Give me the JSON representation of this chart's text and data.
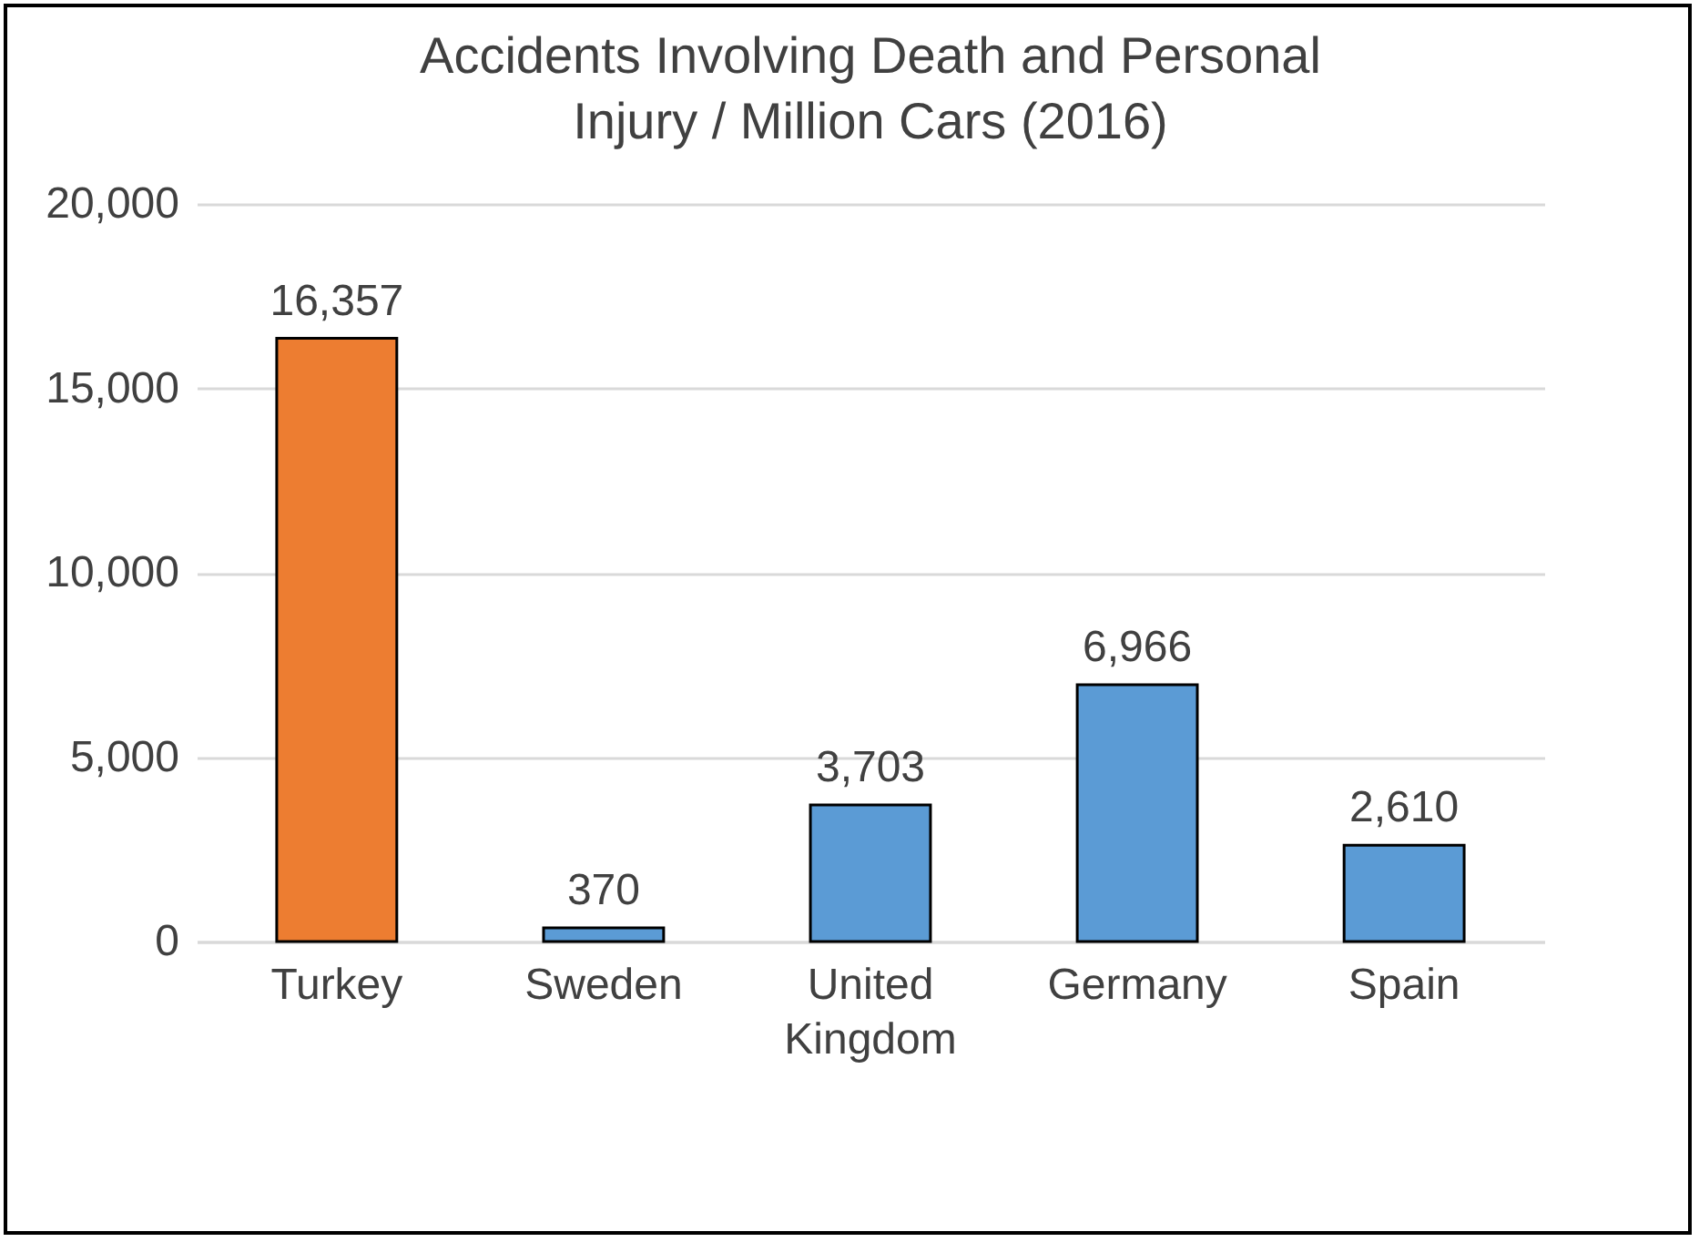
{
  "chart_data": {
    "type": "bar",
    "title": "Accidents Involving Death and Personal Injury / Million Cars (2016)",
    "categories": [
      "Turkey",
      "Sweden",
      "United Kingdom",
      "Germany",
      "Spain"
    ],
    "values": [
      16357,
      370,
      3703,
      6966,
      2610
    ],
    "value_labels": [
      "16,357",
      "370",
      "3,703",
      "6,966",
      "2,610"
    ],
    "colors": [
      "#ed7d31",
      "#5b9bd5",
      "#5b9bd5",
      "#5b9bd5",
      "#5b9bd5"
    ],
    "ylim": [
      0,
      20000
    ],
    "yticks": [
      0,
      {
        "value": 5000,
        "label": "5,000"
      },
      {
        "value": 10000,
        "label": "10,000"
      },
      {
        "value": 15000,
        "label": "15,000"
      },
      {
        "value": 20000,
        "label": "20,000"
      }
    ],
    "grid": "y"
  }
}
